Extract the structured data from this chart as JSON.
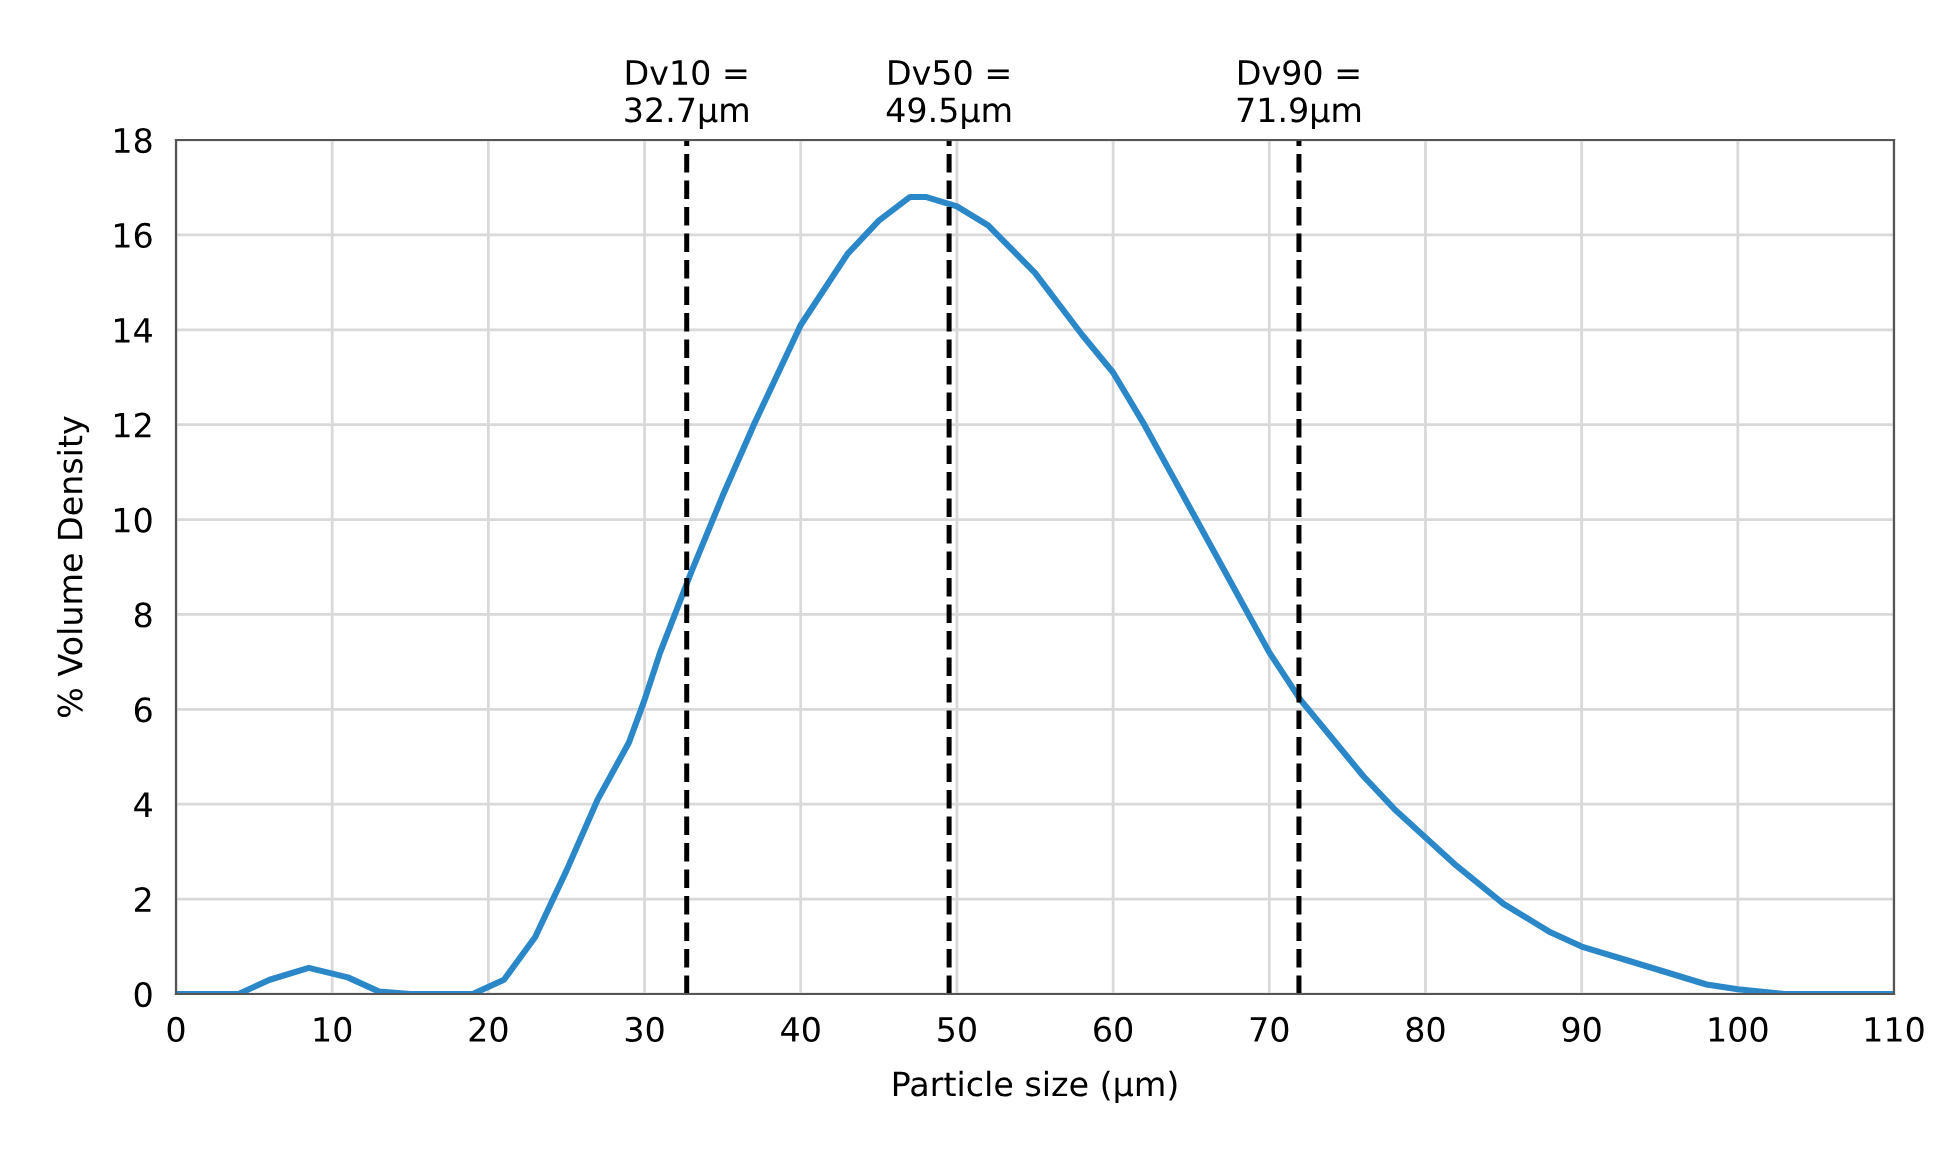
{
  "chart_data": {
    "type": "line",
    "xlabel": "Particle size (µm)",
    "ylabel": "% Volume Density",
    "x": [
      0,
      4,
      6,
      8.5,
      11,
      13,
      15,
      19,
      21,
      23,
      25,
      27,
      29,
      30,
      31,
      33,
      35,
      37,
      40,
      43,
      45,
      47,
      48,
      50,
      52,
      55,
      58,
      60,
      62,
      64,
      66,
      68,
      70,
      72,
      74,
      76,
      78,
      80,
      82,
      85,
      88,
      90,
      93,
      95,
      98,
      100,
      103,
      110
    ],
    "series": [
      {
        "color": "#2a88c9",
        "values": [
          0,
          0,
          0.3,
          0.55,
          0.35,
          0.05,
          0,
          0,
          0.3,
          1.2,
          2.6,
          4.1,
          5.3,
          6.2,
          7.2,
          8.9,
          10.5,
          12.0,
          14.1,
          15.6,
          16.3,
          16.8,
          16.8,
          16.6,
          16.2,
          15.2,
          13.9,
          13.1,
          12.0,
          10.8,
          9.6,
          8.4,
          7.2,
          6.2,
          5.4,
          4.6,
          3.9,
          3.3,
          2.7,
          1.9,
          1.3,
          1.0,
          0.7,
          0.5,
          0.2,
          0.1,
          0,
          0
        ]
      }
    ],
    "xlim": [
      0,
      110
    ],
    "xticks": [
      0,
      10,
      20,
      30,
      40,
      50,
      60,
      70,
      80,
      90,
      100,
      110
    ],
    "ylim": [
      0,
      18
    ],
    "yticks": [
      0,
      2,
      4,
      6,
      8,
      10,
      12,
      14,
      16,
      18
    ],
    "ref_lines": [
      {
        "axis": "x",
        "value": 32.7,
        "label": "Dv10 =\n32.7µm",
        "color": "#000000",
        "line_style": "dashed"
      },
      {
        "axis": "x",
        "value": 49.5,
        "label": "Dv50 =\n49.5µm",
        "color": "#000000",
        "line_style": "dashed"
      },
      {
        "axis": "x",
        "value": 71.9,
        "label": "Dv90 =\n71.9µm",
        "color": "#000000",
        "line_style": "dashed"
      }
    ],
    "grid": true,
    "marker": "none",
    "line_style": "solid",
    "legend": false
  }
}
